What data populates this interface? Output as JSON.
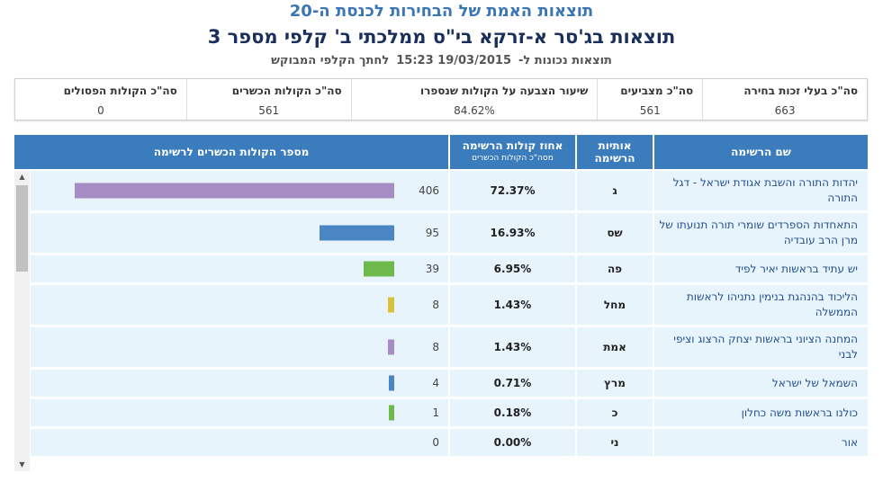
{
  "header": {
    "title": "תוצאות האמת של הבחירות לכנסת ה-20",
    "subtitle": "תוצאות בג'סר א-זרקא בי\"ס ממלכתי ב' קלפי מספר 3",
    "updated_label": "תוצאות נכונות ל-",
    "updated_value": "19/03/2015 15:23",
    "link_text": "לחתך הקלפי המבוקש"
  },
  "summary": {
    "eligible_label": "סה\"כ בעלי זכות בחירה",
    "eligible_value": "663",
    "voters_label": "סה\"כ מצביעים",
    "voters_value": "561",
    "turnout_label": "שיעור הצבעה על הקולות שנספרו",
    "turnout_value": "84.62%",
    "valid_label": "סה\"כ הקולות הכשרים",
    "valid_value": "561",
    "invalid_label": "סה\"כ הקולות הפסולים",
    "invalid_value": "0"
  },
  "table": {
    "col_name": "שם הרשימה",
    "col_letters_1": "אותיות",
    "col_letters_2": "הרשימה",
    "col_pct_1": "אחוז קולות הרשימה",
    "col_pct_2": "מסה\"כ הקולות הכשרים",
    "col_votes": "מספר הקולות הכשרים לרשימה"
  },
  "colors": {
    "header_bg": "#3b7cbc",
    "row_bg": "#e8f4fc",
    "name_text": "#23508e"
  },
  "chart_data": {
    "type": "bar",
    "categories": [
      "יהדות התורה והשבת אגודת ישראל - דגל התורה",
      "התאחדות הספרדים שומרי תורה תנועתו של מרן הרב עובדיה",
      "יש עתיד בראשות יאיר לפיד",
      "הליכוד בהנהגת בנימין נתניהו לראשות הממשלה",
      "המחנה הציוני בראשות יצחק הרצוג וציפי לבני",
      "השמאל של ישראל",
      "כולנו בראשות משה כחלון",
      "אור"
    ],
    "letters": [
      "ג",
      "שס",
      "פה",
      "מחל",
      "אמת",
      "מרץ",
      "כ",
      "ני"
    ],
    "percents": [
      "72.37%",
      "16.93%",
      "6.95%",
      "1.43%",
      "1.43%",
      "0.71%",
      "0.18%",
      "0.00%"
    ],
    "values": [
      406,
      95,
      39,
      8,
      8,
      4,
      1,
      0
    ],
    "colors": [
      "#a78dc3",
      "#4a86c4",
      "#6db94b",
      "#d8c23a",
      "#a78dc3",
      "#4a86c4",
      "#6db94b",
      "#d8c23a"
    ],
    "xlim": [
      0,
      406
    ]
  }
}
